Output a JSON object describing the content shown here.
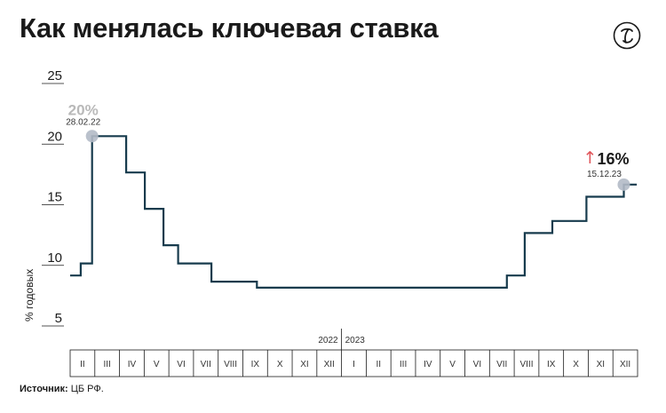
{
  "header": {
    "title": "Как менялась ключевая ставка",
    "logo_icon": "publisher-logo-icon"
  },
  "source": {
    "label": "Источник:",
    "text": "ЦБ РФ."
  },
  "colors": {
    "line": "#173b4d",
    "marker": "#b3bac6",
    "up_arrow": "#e0555a",
    "start_label": "#b9b9b9"
  },
  "chart_data": {
    "type": "line",
    "title": "Как менялась ключевая ставка",
    "ylabel": "% годовых",
    "xlabel": "",
    "ylim": [
      5,
      25
    ],
    "yticks": [
      5,
      10,
      15,
      20,
      25
    ],
    "grid": false,
    "step": true,
    "years": [
      "2022",
      "2023"
    ],
    "months": [
      "II",
      "III",
      "IV",
      "V",
      "VI",
      "VII",
      "VIII",
      "IX",
      "X",
      "XI",
      "XII",
      "I",
      "II",
      "III",
      "IV",
      "V",
      "VI",
      "VII",
      "VIII",
      "IX",
      "X",
      "XI",
      "XII"
    ],
    "series": [
      {
        "name": "",
        "points": [
          {
            "date": "2022-02-01",
            "value": 8.5
          },
          {
            "date": "2022-02-14",
            "value": 9.5
          },
          {
            "date": "2022-02-28",
            "value": 20
          },
          {
            "date": "2022-04-11",
            "value": 17
          },
          {
            "date": "2022-05-04",
            "value": 14
          },
          {
            "date": "2022-05-27",
            "value": 11
          },
          {
            "date": "2022-06-14",
            "value": 9.5
          },
          {
            "date": "2022-07-25",
            "value": 8
          },
          {
            "date": "2022-09-19",
            "value": 7.5
          },
          {
            "date": "2023-07-24",
            "value": 8.5
          },
          {
            "date": "2023-08-15",
            "value": 12
          },
          {
            "date": "2023-09-18",
            "value": 13
          },
          {
            "date": "2023-10-30",
            "value": 15
          },
          {
            "date": "2023-12-15",
            "value": 16
          },
          {
            "date": "2023-12-31",
            "value": 16
          }
        ]
      }
    ],
    "annotations": [
      {
        "value_label": "20%",
        "date_label": "28.02.22",
        "date": "2022-02-28",
        "value": 20
      },
      {
        "arrow": "↑",
        "value_label": "16%",
        "date_label": "15.12.23",
        "date": "2023-12-15",
        "value": 16
      }
    ]
  }
}
